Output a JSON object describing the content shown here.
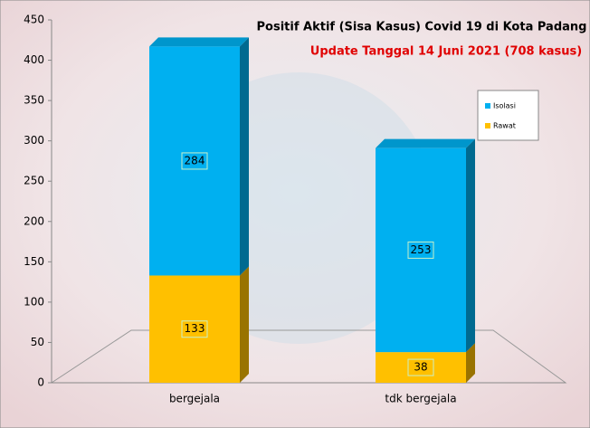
{
  "chart_data": {
    "type": "bar",
    "stacked": true,
    "title": "Positif Aktif  (Sisa Kasus) Covid 19 di Kota Padang",
    "subtitle": "Update Tanggal 14 Juni 2021  (708 kasus)",
    "categories": [
      "bergejala",
      "tdk bergejala"
    ],
    "series": [
      {
        "name": "Rawat",
        "color": "#ffc000",
        "values": [
          133,
          38
        ]
      },
      {
        "name": "Isolasi",
        "color": "#00b0f0",
        "values": [
          284,
          253
        ]
      }
    ],
    "ylim": [
      0,
      450
    ],
    "yticks": [
      0,
      50,
      100,
      150,
      200,
      250,
      300,
      350,
      400,
      450
    ],
    "legend": "right"
  }
}
